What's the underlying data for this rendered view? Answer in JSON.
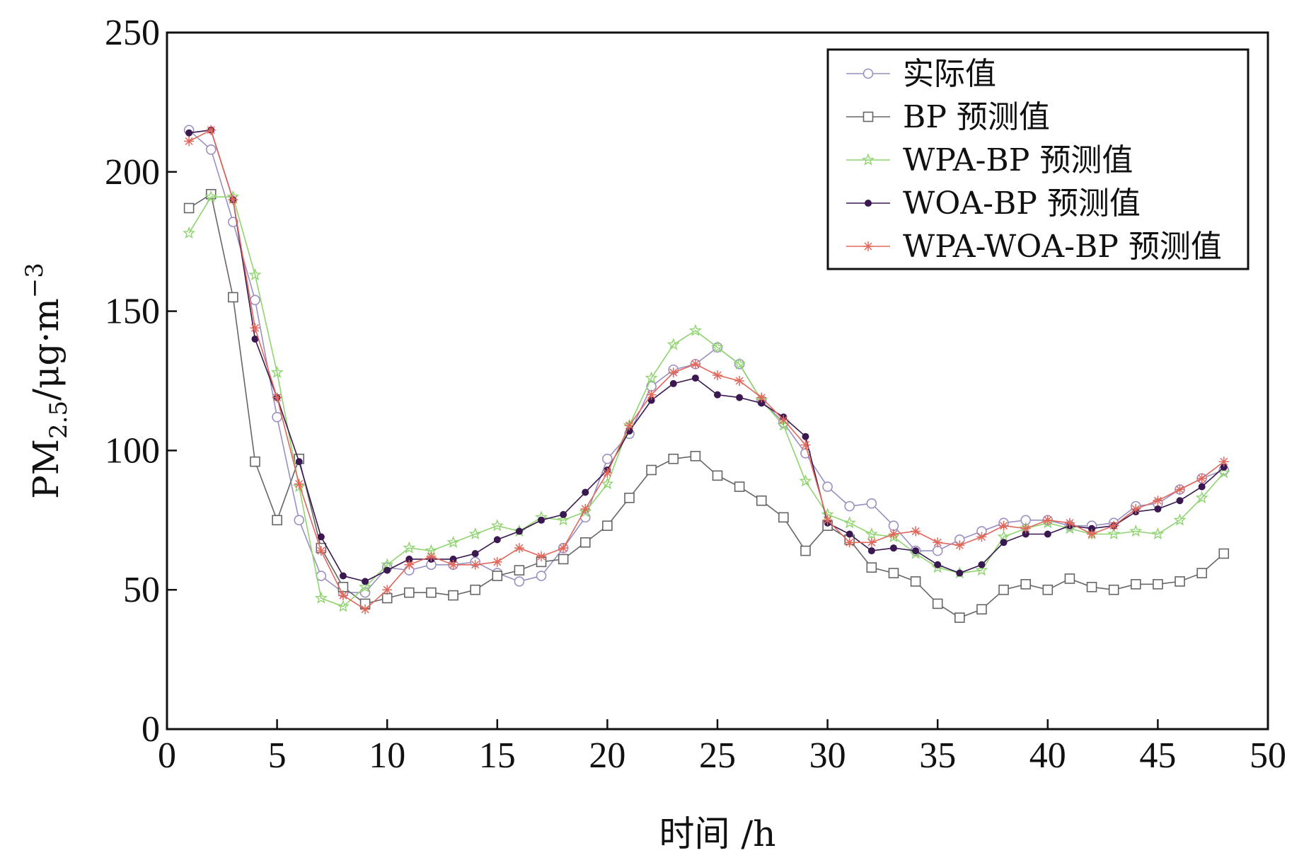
{
  "chart_data": {
    "type": "line",
    "title": "",
    "xlabel": "时间 /h",
    "ylabel": {
      "main": "PM",
      "sub": "2.5",
      "rest": "/μg·m",
      "sup": "−3"
    },
    "xlim": [
      0,
      50
    ],
    "ylim": [
      0,
      250
    ],
    "xticks": [
      0,
      5,
      10,
      15,
      20,
      25,
      30,
      35,
      40,
      45,
      50
    ],
    "yticks": [
      0,
      50,
      100,
      150,
      200,
      250
    ],
    "grid": false,
    "legend_position": "top-right",
    "x": [
      1,
      2,
      3,
      4,
      5,
      6,
      7,
      8,
      9,
      10,
      11,
      12,
      13,
      14,
      15,
      16,
      17,
      18,
      19,
      20,
      21,
      22,
      23,
      24,
      25,
      26,
      27,
      28,
      29,
      30,
      31,
      32,
      33,
      34,
      35,
      36,
      37,
      38,
      39,
      40,
      41,
      42,
      43,
      44,
      45,
      46,
      47,
      48
    ],
    "series": [
      {
        "name": "实际值",
        "color": "#9b8fc2",
        "marker": "circle",
        "values": [
          215,
          208,
          182,
          154,
          112,
          75,
          55,
          49,
          49,
          58,
          57,
          59,
          59,
          60,
          56,
          53,
          55,
          65,
          76,
          97,
          106,
          123,
          129,
          131,
          137,
          131,
          118,
          110,
          99,
          87,
          80,
          81,
          73,
          64,
          64,
          68,
          71,
          74,
          75,
          75,
          73,
          73,
          74,
          80,
          81,
          86,
          90,
          93
        ]
      },
      {
        "name": "BP 预测值",
        "color": "#666666",
        "marker": "square",
        "values": [
          187,
          192,
          155,
          96,
          75,
          97,
          65,
          51,
          45,
          47,
          49,
          49,
          48,
          50,
          55,
          57,
          60,
          61,
          67,
          73,
          83,
          93,
          97,
          98,
          91,
          87,
          82,
          76,
          64,
          73,
          68,
          58,
          56,
          53,
          45,
          40,
          43,
          50,
          52,
          50,
          54,
          51,
          50,
          52,
          52,
          53,
          56,
          63
        ]
      },
      {
        "name": "WPA-BP 预测值",
        "color": "#8fd46f",
        "marker": "star",
        "values": [
          178,
          191,
          191,
          163,
          128,
          87,
          47,
          44,
          51,
          59,
          65,
          64,
          67,
          70,
          73,
          71,
          76,
          75,
          78,
          88,
          109,
          126,
          138,
          143,
          137,
          131,
          118,
          109,
          89,
          77,
          74,
          70,
          69,
          63,
          58,
          56,
          57,
          69,
          72,
          74,
          72,
          70,
          70,
          71,
          70,
          75,
          83,
          92
        ]
      },
      {
        "name": "WOA-BP 预测值",
        "color": "#3a1850",
        "marker": "dot",
        "values": [
          214,
          215,
          190,
          140,
          119,
          96,
          69,
          55,
          53,
          57,
          61,
          61,
          61,
          63,
          68,
          71,
          75,
          77,
          85,
          93,
          107,
          118,
          124,
          126,
          120,
          119,
          117,
          112,
          105,
          74,
          70,
          64,
          65,
          64,
          59,
          56,
          59,
          67,
          70,
          70,
          73,
          72,
          73,
          78,
          79,
          82,
          87,
          94
        ]
      },
      {
        "name": "WPA-WOA-BP 预测值",
        "color": "#e0685c",
        "marker": "plus",
        "values": [
          211,
          215,
          190,
          144,
          119,
          88,
          64,
          48,
          43,
          50,
          59,
          62,
          59,
          59,
          60,
          65,
          62,
          65,
          79,
          92,
          109,
          120,
          128,
          131,
          127,
          125,
          119,
          111,
          102,
          75,
          67,
          67,
          70,
          71,
          67,
          66,
          69,
          73,
          72,
          75,
          74,
          70,
          73,
          79,
          82,
          86,
          90,
          96
        ]
      }
    ]
  }
}
